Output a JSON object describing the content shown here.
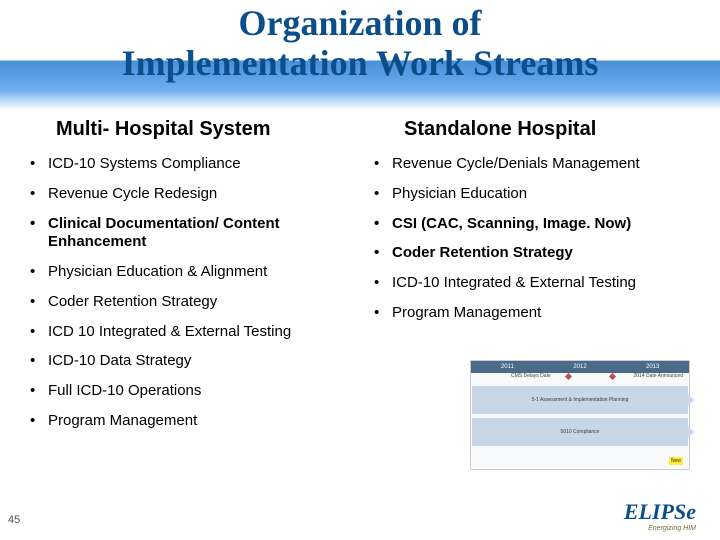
{
  "title_line1": "Organization of",
  "title_line2": "Implementation Work Streams",
  "page_number": "45",
  "colors": {
    "title": "#0b4f8a",
    "accent_blue": "#4a90d9",
    "text": "#000000"
  },
  "left": {
    "heading": "Multi- Hospital System",
    "items": [
      {
        "text": "ICD-10 Systems Compliance",
        "bold": false
      },
      {
        "text": "Revenue Cycle Redesign",
        "bold": false
      },
      {
        "text": "Clinical Documentation/ Content Enhancement",
        "bold": true
      },
      {
        "text": "Physician Education & Alignment",
        "bold": false
      },
      {
        "text": "Coder Retention Strategy",
        "bold": false
      },
      {
        "text": "ICD 10 Integrated & External Testing",
        "bold": false
      },
      {
        "text": "ICD-10 Data Strategy",
        "bold": false
      },
      {
        "text": "Full ICD-10 Operations",
        "bold": false
      },
      {
        "text": "Program Management",
        "bold": false
      }
    ]
  },
  "right": {
    "heading": "Standalone Hospital",
    "items": [
      {
        "text": "Revenue Cycle/Denials Management",
        "bold": false
      },
      {
        "text": "Physician Education",
        "bold": false
      },
      {
        "text": "CSI (CAC, Scanning, Image. Now)",
        "bold": true
      },
      {
        "text": "Coder Retention Strategy",
        "bold": true
      },
      {
        "text": "ICD-10 Integrated & External Testing",
        "bold": false
      },
      {
        "text": "Program Management",
        "bold": false
      }
    ]
  },
  "timeline_graphic": {
    "years": [
      "2011",
      "2012",
      "2013"
    ],
    "year_bg": [
      "#4a6a8a",
      "#4a6a8a",
      "#4a6a8a"
    ],
    "delay_label": "CMS Delays Date",
    "delay_marker_color": "#c05050",
    "date_announced": "2014 Date Announced",
    "bands": [
      {
        "label": "5-1 Assessment & Implementation Planning",
        "color": "#c7d7e7"
      },
      {
        "label": "5010 Compliance",
        "color": "#c7d7e7"
      }
    ],
    "new_label": "New",
    "new_bg": "#ffd54a"
  },
  "logo": {
    "main": "ELIPSe",
    "sub": "Energizing HIM"
  }
}
